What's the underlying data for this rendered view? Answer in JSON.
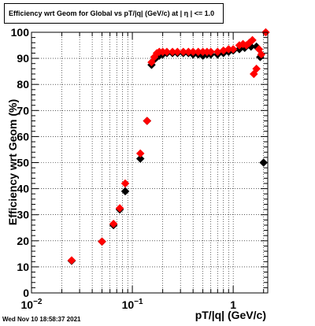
{
  "chart_data": {
    "type": "scatter",
    "title": "Efficiency wrt Geom for Global vs pT/|q| (GeV/c) at |  η | <= 1.0",
    "xlabel": "pT/|q| (GeV/c)",
    "ylabel": "Efficiency wrt Geom (%)",
    "xscale": "log",
    "xlim": [
      0.01,
      2.2
    ],
    "ylim": [
      0,
      100
    ],
    "yticks": [
      "0",
      "10",
      "20",
      "30",
      "40",
      "50",
      "60",
      "70",
      "80",
      "90",
      "100"
    ],
    "xtick_labels": [
      {
        "value": 0.01,
        "base": "10",
        "exp": "−2"
      },
      {
        "value": 0.1,
        "base": "10",
        "exp": "−1"
      },
      {
        "value": 1,
        "base": "1",
        "exp": ""
      }
    ],
    "grid": true,
    "series": [
      {
        "color": "#000000",
        "marker": "diamond",
        "points": [
          [
            0.025,
            12.3
          ],
          [
            0.05,
            19.7
          ],
          [
            0.065,
            26.0
          ],
          [
            0.075,
            32.0
          ],
          [
            0.085,
            39.0
          ],
          [
            0.12,
            51.5
          ],
          [
            0.14,
            66.0
          ],
          [
            0.155,
            87.5
          ],
          [
            0.165,
            89.5
          ],
          [
            0.175,
            90.5
          ],
          [
            0.185,
            91.0
          ],
          [
            0.2,
            91.5
          ],
          [
            0.22,
            92.0
          ],
          [
            0.25,
            92.0
          ],
          [
            0.28,
            92.0
          ],
          [
            0.32,
            92.0
          ],
          [
            0.36,
            92.0
          ],
          [
            0.4,
            91.5
          ],
          [
            0.45,
            91.5
          ],
          [
            0.5,
            91.0
          ],
          [
            0.55,
            91.5
          ],
          [
            0.6,
            91.5
          ],
          [
            0.7,
            91.5
          ],
          [
            0.8,
            92.0
          ],
          [
            0.9,
            92.5
          ],
          [
            1.0,
            93.0
          ],
          [
            1.15,
            93.5
          ],
          [
            1.3,
            94.0
          ],
          [
            1.5,
            94.5
          ],
          [
            1.7,
            94.5
          ],
          [
            1.85,
            90.5
          ],
          [
            2.0,
            50.0
          ]
        ]
      },
      {
        "color": "#ff0000",
        "marker": "diamond",
        "points": [
          [
            0.025,
            12.5
          ],
          [
            0.05,
            19.7
          ],
          [
            0.065,
            26.5
          ],
          [
            0.075,
            32.5
          ],
          [
            0.085,
            42.0
          ],
          [
            0.12,
            53.5
          ],
          [
            0.14,
            66.0
          ],
          [
            0.155,
            88.5
          ],
          [
            0.165,
            90.5
          ],
          [
            0.175,
            92.0
          ],
          [
            0.185,
            92.5
          ],
          [
            0.2,
            92.5
          ],
          [
            0.22,
            92.5
          ],
          [
            0.25,
            92.5
          ],
          [
            0.28,
            92.5
          ],
          [
            0.32,
            92.5
          ],
          [
            0.36,
            92.5
          ],
          [
            0.4,
            92.5
          ],
          [
            0.45,
            92.5
          ],
          [
            0.5,
            92.5
          ],
          [
            0.55,
            92.5
          ],
          [
            0.6,
            92.5
          ],
          [
            0.7,
            92.5
          ],
          [
            0.8,
            93.0
          ],
          [
            0.9,
            93.5
          ],
          [
            1.0,
            93.5
          ],
          [
            1.15,
            95.0
          ],
          [
            1.25,
            95.5
          ],
          [
            1.35,
            95.0
          ],
          [
            1.45,
            96.0
          ],
          [
            1.55,
            97.0
          ],
          [
            1.6,
            84.0
          ],
          [
            1.7,
            86.0
          ],
          [
            1.8,
            93.5
          ],
          [
            1.9,
            91.5
          ],
          [
            2.1,
            100.0
          ]
        ]
      }
    ]
  },
  "footer": {
    "timestamp": "Wed Nov 10 18:58:37 2021"
  }
}
